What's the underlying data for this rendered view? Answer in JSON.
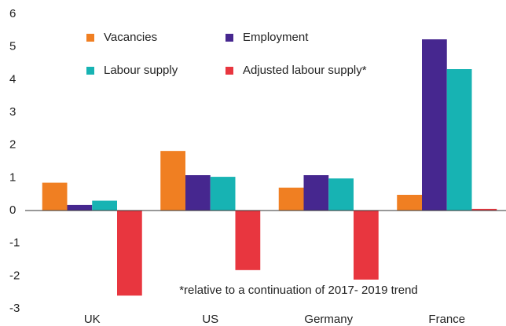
{
  "chart_data": {
    "type": "bar",
    "categories": [
      "UK",
      "US",
      "Germany",
      "France"
    ],
    "series": [
      {
        "name": "Vacancies",
        "color": "#f07f22",
        "values": [
          0.85,
          1.82,
          0.7,
          0.48
        ]
      },
      {
        "name": "Employment",
        "color": "#46278f",
        "values": [
          0.17,
          1.08,
          1.08,
          5.23
        ]
      },
      {
        "name": "Labour supply",
        "color": "#17b3b3",
        "values": [
          0.3,
          1.03,
          0.98,
          4.32
        ]
      },
      {
        "name": "Adjusted labour supply*",
        "color": "#e8363f",
        "values": [
          -2.6,
          -1.82,
          -2.11,
          0.05
        ]
      }
    ],
    "ylim": [
      -3,
      6
    ],
    "yticks": [
      -3,
      -2,
      -1,
      0,
      1,
      2,
      3,
      4,
      5,
      6
    ],
    "grid": false,
    "annotation": "*relative to a continuation of 2017- 2019 trend"
  }
}
